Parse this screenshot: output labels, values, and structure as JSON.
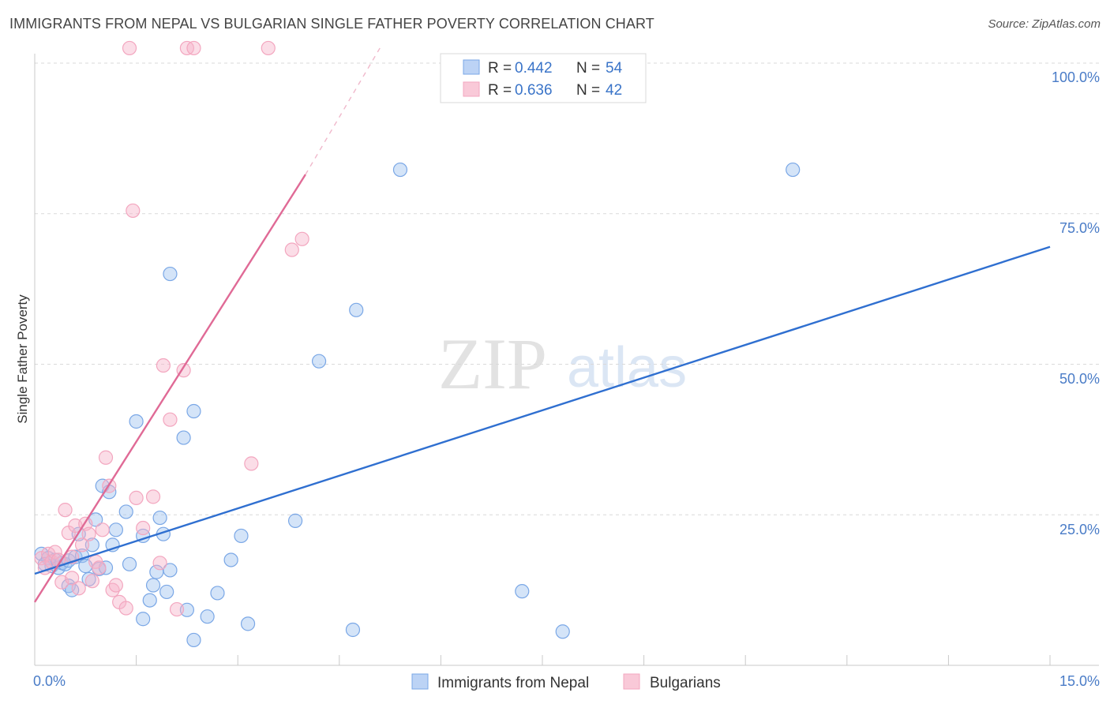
{
  "header": {
    "title": "IMMIGRANTS FROM NEPAL VS BULGARIAN SINGLE FATHER POVERTY CORRELATION CHART",
    "source": "Source: ZipAtlas.com"
  },
  "watermark": {
    "zip": "ZIP",
    "atlas": "atlas"
  },
  "colors": {
    "nepal": "#7aa7e6",
    "nepal_line": "#2f6fd0",
    "bulgarians": "#f3a6bf",
    "bulgarians_line": "#e06a96",
    "axis_text": "#4a7cc7"
  },
  "legend": {
    "nepal": {
      "r_label": "R =",
      "r_value": "0.442",
      "n_label": "N =",
      "n_value": "54"
    },
    "bulgarians": {
      "r_label": "R =",
      "r_value": "0.636",
      "n_label": "N =",
      "n_value": "42"
    }
  },
  "chart_data": {
    "type": "scatter",
    "title": "IMMIGRANTS FROM NEPAL VS BULGARIAN SINGLE FATHER POVERTY CORRELATION CHART",
    "xlabel": "",
    "ylabel": "Single Father Poverty",
    "xlim": [
      0,
      15
    ],
    "ylim": [
      0,
      100
    ],
    "x_tick_labels": [
      "0.0%",
      "15.0%"
    ],
    "y_tick_labels": [
      "100.0%",
      "75.0%",
      "50.0%",
      "25.0%"
    ],
    "y_tick_values": [
      100,
      75,
      50,
      25
    ],
    "grid": true,
    "series": [
      {
        "name": "Immigrants from Nepal",
        "color": "#7aa7e6",
        "trend": {
          "x0": 0,
          "y0": 15.2,
          "x1": 15,
          "y1": 69.5
        },
        "points": [
          [
            0.1,
            18.5
          ],
          [
            0.2,
            17.8
          ],
          [
            0.25,
            16.5
          ],
          [
            0.3,
            17.5
          ],
          [
            0.35,
            16.2
          ],
          [
            0.4,
            17.0
          ],
          [
            0.45,
            16.8
          ],
          [
            0.5,
            13.2
          ],
          [
            0.5,
            17.4
          ],
          [
            0.55,
            12.5
          ],
          [
            0.6,
            18.0
          ],
          [
            0.65,
            21.8
          ],
          [
            0.7,
            18.2
          ],
          [
            0.75,
            16.5
          ],
          [
            0.8,
            14.3
          ],
          [
            0.85,
            20.0
          ],
          [
            0.9,
            24.2
          ],
          [
            0.95,
            16.0
          ],
          [
            1.0,
            29.8
          ],
          [
            1.05,
            16.2
          ],
          [
            1.1,
            28.8
          ],
          [
            1.15,
            20.0
          ],
          [
            1.2,
            22.5
          ],
          [
            1.35,
            25.5
          ],
          [
            1.4,
            16.8
          ],
          [
            1.5,
            40.5
          ],
          [
            1.6,
            7.7
          ],
          [
            1.6,
            21.5
          ],
          [
            1.7,
            10.8
          ],
          [
            1.75,
            13.3
          ],
          [
            1.8,
            15.5
          ],
          [
            1.85,
            24.5
          ],
          [
            1.9,
            21.8
          ],
          [
            1.95,
            12.2
          ],
          [
            2.0,
            15.8
          ],
          [
            2.0,
            65.0
          ],
          [
            2.2,
            37.8
          ],
          [
            2.25,
            9.2
          ],
          [
            2.35,
            4.2
          ],
          [
            2.35,
            42.2
          ],
          [
            2.55,
            8.1
          ],
          [
            2.7,
            12.0
          ],
          [
            2.9,
            17.5
          ],
          [
            3.05,
            21.5
          ],
          [
            3.15,
            6.9
          ],
          [
            3.85,
            24.0
          ],
          [
            4.2,
            50.5
          ],
          [
            4.7,
            5.9
          ],
          [
            4.75,
            59.0
          ],
          [
            5.4,
            82.3
          ],
          [
            7.2,
            12.3
          ],
          [
            7.8,
            5.6
          ],
          [
            11.2,
            82.3
          ],
          [
            0.15,
            16.8
          ]
        ]
      },
      {
        "name": "Bulgarians",
        "color": "#f3a6bf",
        "trend": {
          "x0": 0,
          "y0": 10.5,
          "x1": 4.0,
          "y1": 81.5
        },
        "trend_dashed": {
          "x0": 4.0,
          "y0": 81.5,
          "x1": 5.1,
          "y1": 102.5
        },
        "points": [
          [
            0.1,
            17.8
          ],
          [
            0.15,
            16.2
          ],
          [
            0.2,
            18.5
          ],
          [
            0.25,
            17.2
          ],
          [
            0.3,
            18.8
          ],
          [
            0.35,
            17.5
          ],
          [
            0.4,
            13.8
          ],
          [
            0.45,
            25.8
          ],
          [
            0.5,
            22.0
          ],
          [
            0.55,
            14.5
          ],
          [
            0.6,
            23.2
          ],
          [
            0.65,
            12.8
          ],
          [
            0.7,
            20.0
          ],
          [
            0.75,
            23.5
          ],
          [
            0.8,
            21.8
          ],
          [
            0.85,
            14.0
          ],
          [
            0.9,
            17.2
          ],
          [
            0.95,
            16.2
          ],
          [
            1.0,
            22.5
          ],
          [
            1.05,
            34.5
          ],
          [
            1.1,
            29.8
          ],
          [
            1.15,
            12.5
          ],
          [
            1.2,
            13.3
          ],
          [
            1.25,
            10.5
          ],
          [
            1.35,
            9.5
          ],
          [
            1.4,
            102.5
          ],
          [
            1.45,
            75.5
          ],
          [
            1.5,
            27.8
          ],
          [
            1.6,
            22.8
          ],
          [
            1.75,
            28.0
          ],
          [
            1.85,
            17.0
          ],
          [
            1.9,
            49.8
          ],
          [
            2.0,
            40.8
          ],
          [
            2.1,
            9.3
          ],
          [
            2.2,
            49.0
          ],
          [
            2.25,
            102.5
          ],
          [
            2.35,
            102.5
          ],
          [
            3.2,
            33.5
          ],
          [
            3.45,
            102.5
          ],
          [
            3.8,
            69.0
          ],
          [
            3.95,
            70.8
          ],
          [
            0.55,
            18.0
          ]
        ]
      }
    ]
  },
  "bottom_legend": {
    "nepal_label": "Immigrants from Nepal",
    "bulgarians_label": "Bulgarians"
  }
}
